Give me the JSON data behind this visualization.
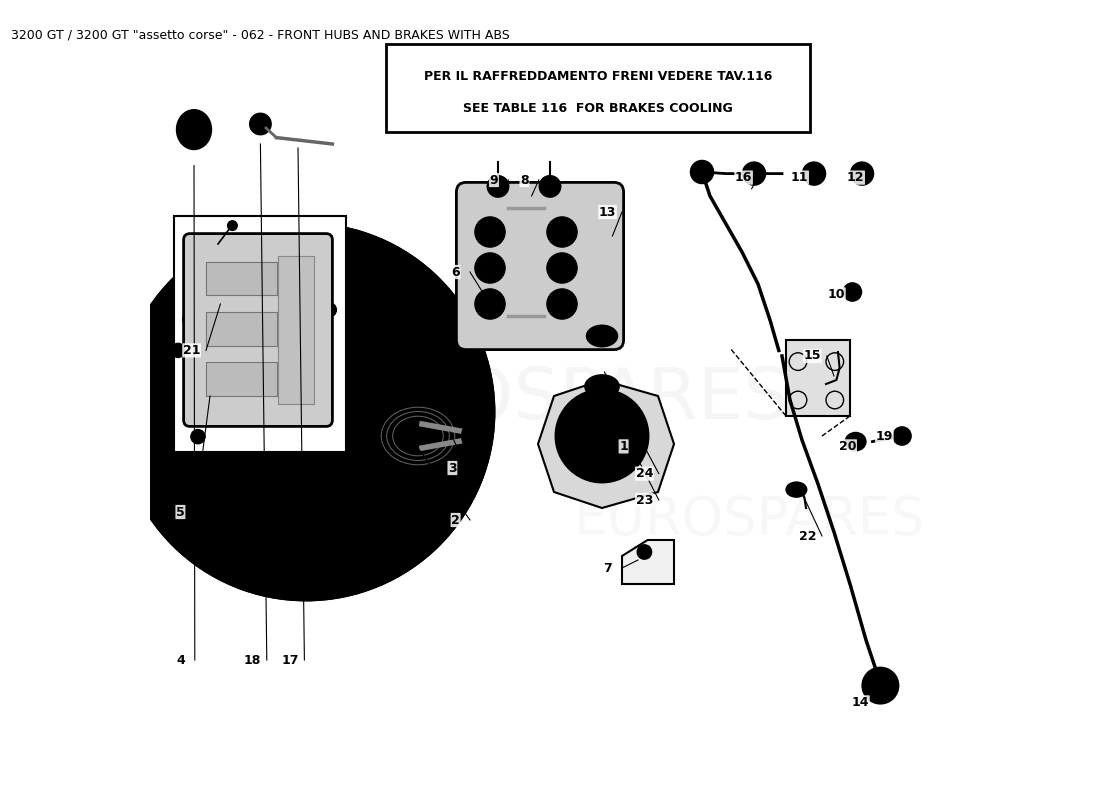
{
  "title": "3200 GT / 3200 GT \"assetto corse\" - 062 - FRONT HUBS AND BRAKES WITH ABS",
  "title_fontsize": 9,
  "bg_color": "#ffffff",
  "notice_line1": "PER IL RAFFREDDAMENTO FRENI VEDERE TAV.116",
  "notice_line2": "SEE TABLE 116  FOR BRAKES COOLING",
  "watermark": "eurospares"
}
